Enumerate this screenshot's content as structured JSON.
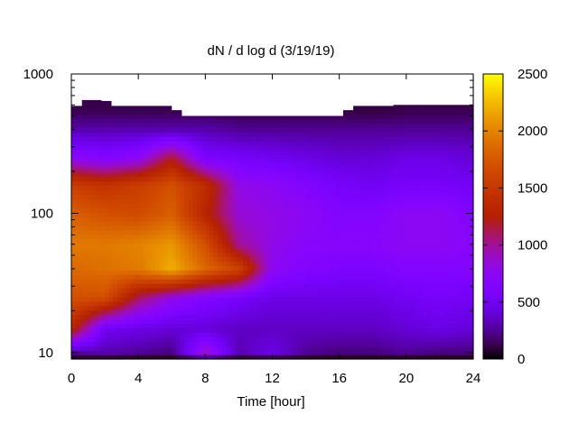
{
  "chart_data": {
    "type": "heatmap",
    "title": "dN / d log d (3/19/19)",
    "xlabel": "Time [hour]",
    "ylabel": "",
    "x_range": [
      0,
      24
    ],
    "y_range": [
      9,
      1000
    ],
    "y_scale": "log",
    "x_ticks": [
      0,
      4,
      8,
      12,
      16,
      20,
      24
    ],
    "y_ticks": [
      10,
      100,
      1000
    ],
    "colorbar": {
      "range": [
        0,
        2500
      ],
      "ticks": [
        0,
        500,
        1000,
        1500,
        2000,
        2500
      ]
    },
    "x": [
      0,
      2,
      4,
      6,
      8,
      10,
      12,
      14,
      16,
      18,
      20,
      22,
      24
    ],
    "y": [
      10,
      15,
      25,
      40,
      60,
      100,
      160,
      250,
      400,
      550
    ],
    "z": [
      [
        250,
        300,
        250,
        200,
        900,
        300,
        450,
        250,
        200,
        200,
        250,
        200,
        200
      ],
      [
        1350,
        500,
        450,
        400,
        400,
        350,
        350,
        350,
        350,
        350,
        400,
        450,
        400
      ],
      [
        1700,
        1700,
        1100,
        800,
        650,
        550,
        450,
        450,
        450,
        450,
        500,
        550,
        500
      ],
      [
        1850,
        1900,
        1950,
        2200,
        1850,
        1600,
        750,
        650,
        600,
        600,
        650,
        650,
        650
      ],
      [
        1950,
        1950,
        2000,
        2100,
        1700,
        1000,
        800,
        700,
        700,
        700,
        750,
        750,
        700
      ],
      [
        1800,
        1700,
        1650,
        1800,
        1300,
        850,
        800,
        750,
        650,
        650,
        750,
        750,
        650
      ],
      [
        1550,
        1450,
        1550,
        1700,
        1400,
        800,
        750,
        650,
        550,
        500,
        550,
        550,
        500
      ],
      [
        750,
        650,
        750,
        1200,
        600,
        550,
        500,
        450,
        400,
        400,
        450,
        450,
        400
      ],
      [
        300,
        300,
        300,
        300,
        300,
        250,
        250,
        250,
        250,
        250,
        250,
        250,
        250
      ],
      [
        120,
        120,
        120,
        120,
        120,
        100,
        100,
        100,
        100,
        100,
        120,
        120,
        120
      ]
    ],
    "upper_limit_y": [
      590,
      650,
      650,
      640,
      590,
      590,
      590,
      590,
      590,
      590,
      550,
      500,
      500,
      500,
      500,
      500,
      500,
      500,
      500,
      500,
      500,
      500,
      500,
      500,
      500,
      500,
      500,
      550,
      590,
      590,
      590,
      590,
      600,
      600,
      600,
      600,
      600,
      600,
      600,
      600,
      600
    ],
    "grid": false
  }
}
